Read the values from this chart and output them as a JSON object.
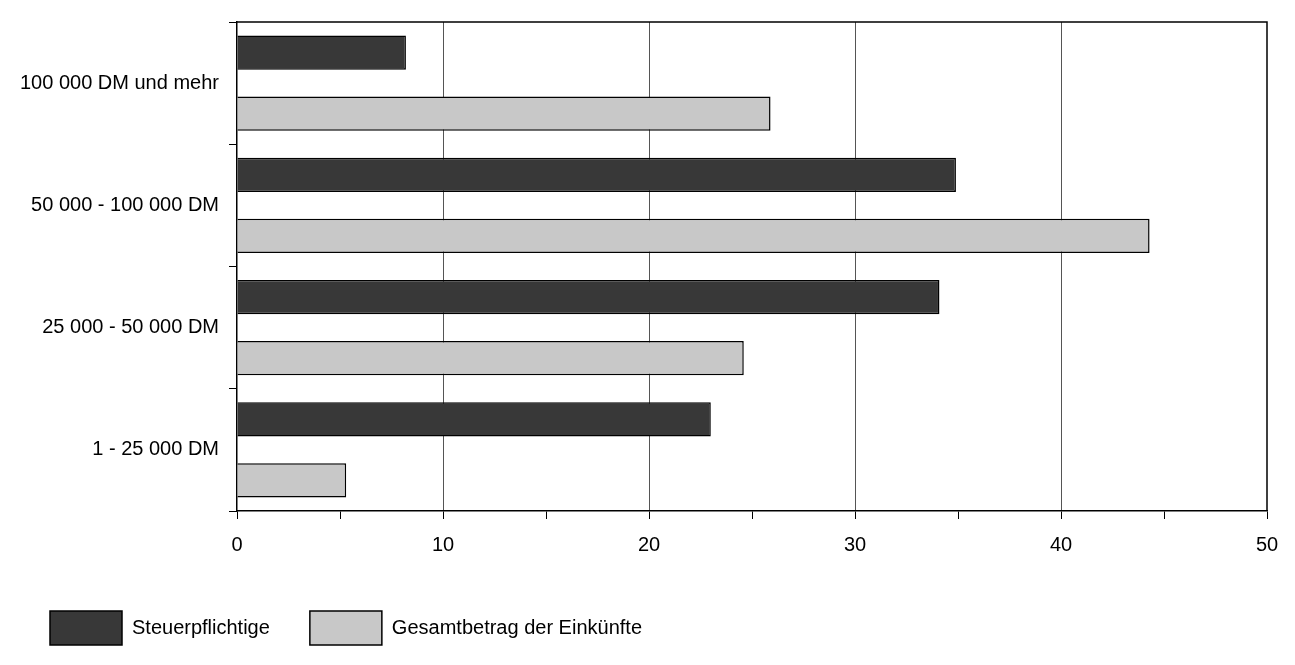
{
  "chart_data": {
    "type": "bar",
    "orientation": "horizontal",
    "categories": [
      "100 000 DM und mehr",
      "50 000 - 100 000 DM",
      "25 000 - 50 000 DM",
      "1 - 25 000 DM"
    ],
    "series": [
      {
        "name": "Steuerpflichtige",
        "color": "#383838",
        "values": [
          8.2,
          34.9,
          34.1,
          23.0
        ]
      },
      {
        "name": "Gesamtbetrag der Einkünfte",
        "color": "#c8c8c8",
        "values": [
          25.9,
          44.3,
          24.6,
          5.3
        ]
      }
    ],
    "xlim": [
      0,
      50
    ],
    "xticks": [
      0,
      {
        "value": 5,
        "label": null
      },
      10,
      {
        "value": 15,
        "label": null
      },
      20,
      {
        "value": 25,
        "label": null
      },
      30,
      {
        "value": 35,
        "label": null
      },
      40,
      {
        "value": 45,
        "label": null
      },
      50
    ],
    "grid": "x",
    "legend": "bottom"
  }
}
